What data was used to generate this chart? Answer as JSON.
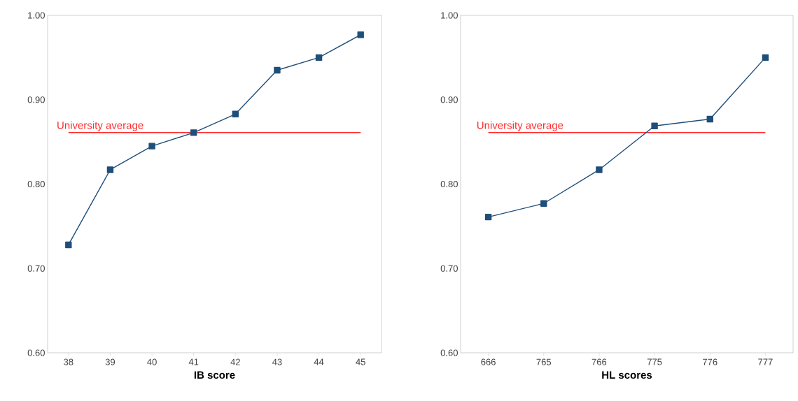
{
  "chart_data": [
    {
      "type": "line",
      "xlabel": "IB score",
      "categories": [
        "38",
        "39",
        "40",
        "41",
        "42",
        "43",
        "44",
        "45"
      ],
      "values": [
        0.728,
        0.817,
        0.845,
        0.861,
        0.883,
        0.935,
        0.95,
        0.977
      ],
      "color": "#1f4e7a",
      "marker": "square",
      "line_style": "solid",
      "ylim": [
        0.6,
        1.0
      ],
      "yticks": [
        {
          "value": 0.6,
          "label": "0.60"
        },
        {
          "value": 0.7,
          "label": "0.70"
        },
        {
          "value": 0.8,
          "label": "0.80"
        },
        {
          "value": 0.9,
          "label": "0.90"
        },
        {
          "value": 1.0,
          "label": "1.00"
        }
      ],
      "ref_lines": [
        {
          "axis": "y",
          "value": 0.861,
          "label": "University average",
          "color": "#ff2b2b"
        }
      ]
    },
    {
      "type": "line",
      "xlabel": "HL scores",
      "categories": [
        "666",
        "765",
        "766",
        "775",
        "776",
        "777"
      ],
      "values": [
        0.761,
        0.777,
        0.817,
        0.869,
        0.877,
        0.95
      ],
      "color": "#1f4e7a",
      "marker": "square",
      "line_style": "solid",
      "ylim": [
        0.6,
        1.0
      ],
      "yticks": [
        {
          "value": 0.6,
          "label": "0.60"
        },
        {
          "value": 0.7,
          "label": "0.70"
        },
        {
          "value": 0.8,
          "label": "0.80"
        },
        {
          "value": 0.9,
          "label": "0.90"
        },
        {
          "value": 1.0,
          "label": "1.00"
        }
      ],
      "ref_lines": [
        {
          "axis": "y",
          "value": 0.861,
          "label": "University average",
          "color": "#ff2b2b"
        }
      ]
    }
  ]
}
